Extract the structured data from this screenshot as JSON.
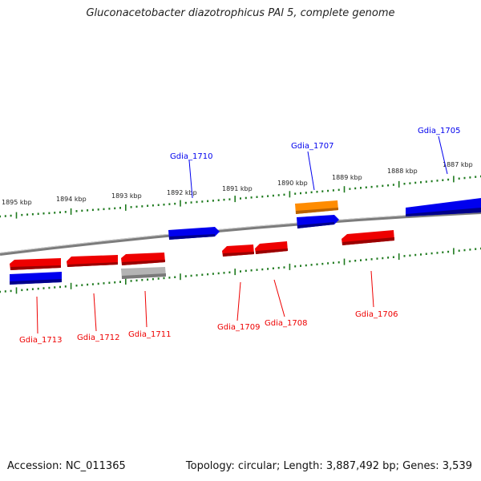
{
  "title": "Gluconacetobacter diazotrophicus PAl 5, complete genome",
  "footer": {
    "accession": "Accession: NC_011365",
    "summary": "Topology: circular; Length: 3,887,492 bp; Genes: 3,539"
  },
  "colors": {
    "forward": "#0000ee",
    "reverse": "#ee0000",
    "highlight": "#ff8c00",
    "pseudo": "#b4b4b4",
    "ticks": "#1e7a1e",
    "backbone": "#7c7c7c"
  },
  "ruler_labels": [
    "1895 kbp",
    "1894 kbp",
    "1893 kbp",
    "1892 kbp",
    "1891 kbp",
    "1890 kbp",
    "1889 kbp",
    "1888 kbp",
    "1887 kbp"
  ],
  "genes": [
    {
      "id": "Gdia_1705",
      "strand": "forward",
      "color": "#0000ee"
    },
    {
      "id": "Gdia_1706",
      "strand": "reverse",
      "color": "#ee0000"
    },
    {
      "id": "Gdia_1707",
      "strand": "forward",
      "color": "#0000ee"
    },
    {
      "id": "Gdia_1708",
      "strand": "reverse",
      "color": "#ee0000"
    },
    {
      "id": "Gdia_1709",
      "strand": "reverse",
      "color": "#ee0000"
    },
    {
      "id": "Gdia_1710",
      "strand": "forward",
      "color": "#0000ee"
    },
    {
      "id": "Gdia_1711",
      "strand": "reverse",
      "color": "#ee0000"
    },
    {
      "id": "Gdia_1712",
      "strand": "reverse",
      "color": "#ee0000"
    },
    {
      "id": "Gdia_1713",
      "strand": "reverse",
      "color": "#ee0000"
    }
  ]
}
